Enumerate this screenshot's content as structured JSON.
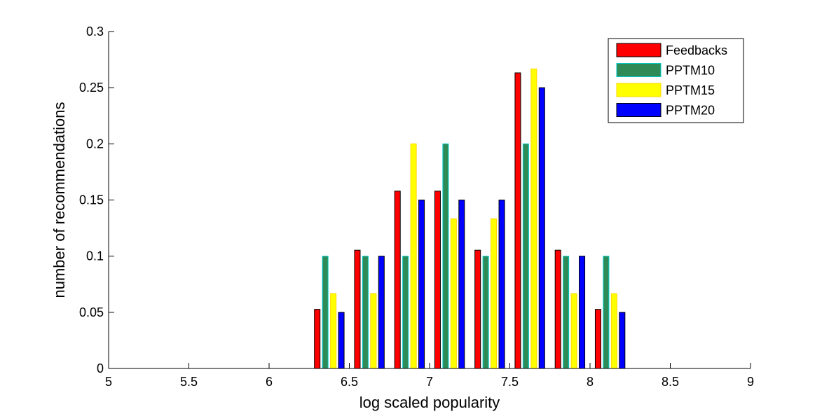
{
  "chart_data": {
    "type": "bar",
    "xlabel": "log scaled popularity",
    "ylabel": "number of recommendations",
    "xlim": [
      5,
      9
    ],
    "ylim": [
      0,
      0.3
    ],
    "x_ticks": [
      5,
      5.5,
      6,
      6.5,
      7,
      7.5,
      8,
      8.5,
      9
    ],
    "y_ticks": [
      0,
      0.05,
      0.1,
      0.15,
      0.2,
      0.25,
      0.3
    ],
    "x_tick_labels": [
      "5",
      "5.5",
      "6",
      "6.5",
      "7",
      "7.5",
      "8",
      "8.5",
      "9"
    ],
    "y_tick_labels": [
      "0",
      "0.05",
      "0.1",
      "0.15",
      "0.2",
      "0.25",
      "0.3"
    ],
    "categories": [
      5.125,
      5.375,
      5.625,
      5.875,
      6.125,
      6.375,
      6.625,
      6.875,
      7.125,
      7.375,
      7.625,
      7.875,
      8.125,
      8.375,
      8.625,
      8.875
    ],
    "series": [
      {
        "name": "Feedbacks",
        "color": "#ff0000",
        "edge": "#000000",
        "values": [
          0,
          0,
          0,
          0,
          0,
          0.0526,
          0.1053,
          0.1579,
          0.1579,
          0.1053,
          0.2632,
          0.1053,
          0.0526,
          0,
          0,
          0
        ]
      },
      {
        "name": "PPTM10",
        "color": "#2e8b57",
        "edge": "#00cccc",
        "values": [
          0,
          0,
          0,
          0,
          0,
          0.1,
          0.1,
          0.1,
          0.2,
          0.1,
          0.2,
          0.1,
          0.1,
          0,
          0,
          0
        ]
      },
      {
        "name": "PPTM15",
        "color": "#ffff00",
        "edge": "#ffd700",
        "values": [
          0,
          0,
          0,
          0,
          0,
          0.0667,
          0.0667,
          0.2,
          0.1333,
          0.1333,
          0.2667,
          0.0667,
          0.0667,
          0,
          0,
          0
        ]
      },
      {
        "name": "PPTM20",
        "color": "#0000ff",
        "edge": "#000000",
        "values": [
          0,
          0,
          0,
          0,
          0,
          0.05,
          0.1,
          0.15,
          0.15,
          0.15,
          0.25,
          0.1,
          0.05,
          0,
          0,
          0
        ]
      }
    ],
    "grid": false,
    "legend_position": "top-right"
  }
}
